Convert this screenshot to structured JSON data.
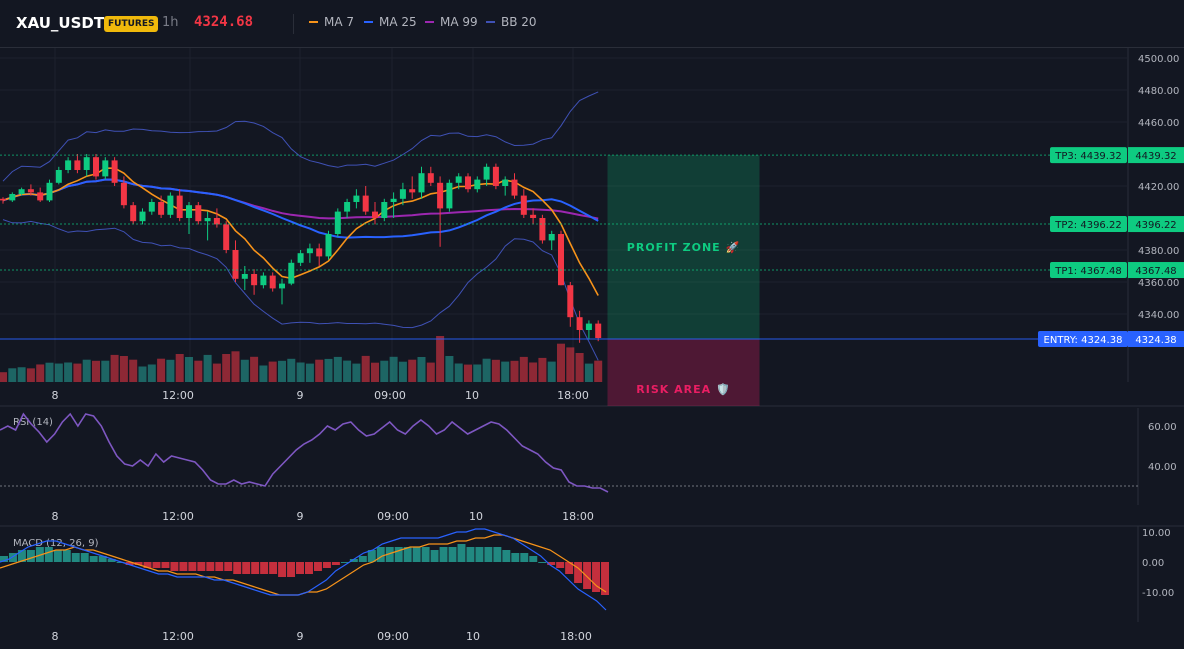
{
  "header": {
    "symbol": "XAU_USDT",
    "badge": "FUTURES",
    "timeframe": "1h",
    "last_price": "4324.68",
    "indicators": [
      {
        "label": "MA 7",
        "color": "#f7931a"
      },
      {
        "label": "MA 25",
        "color": "#2962ff"
      },
      {
        "label": "MA 99",
        "color": "#9c27b0"
      },
      {
        "label": "BB 20",
        "color": "#3f51b5"
      }
    ]
  },
  "colors": {
    "up": "#26a69a",
    "up_candle": "#0ecb81",
    "down": "#f23645",
    "tp": "#0ecb81",
    "entry": "#2962ff",
    "profit_zone": "#0ecb81",
    "risk_area": "#e91e63"
  },
  "chart_data": [
    {
      "type": "candlestick",
      "symbol": "XAU_USDT",
      "interval": "1h",
      "x_ticks": [
        "8",
        "12:00",
        "9",
        "09:00",
        "10",
        "18:00"
      ],
      "y_ticks": [
        "4500.00",
        "4480.00",
        "4460.00",
        "4420.00",
        "4380.00",
        "4360.00",
        "4340.00"
      ],
      "ylim": [
        4320,
        4500
      ],
      "candles": [
        [
          4412,
          4413,
          4409,
          4411
        ],
        [
          4411,
          4416,
          4410,
          4415
        ],
        [
          4415,
          4419,
          4414,
          4418
        ],
        [
          4418,
          4421,
          4414,
          4416
        ],
        [
          4416,
          4419,
          4410,
          4411
        ],
        [
          4411,
          4424,
          4410,
          4422
        ],
        [
          4422,
          4432,
          4421,
          4430
        ],
        [
          4430,
          4438,
          4428,
          4436
        ],
        [
          4436,
          4440,
          4428,
          4430
        ],
        [
          4430,
          4440,
          4426,
          4438
        ],
        [
          4438,
          4440,
          4424,
          4426
        ],
        [
          4426,
          4438,
          4424,
          4436
        ],
        [
          4436,
          4438,
          4420,
          4422
        ],
        [
          4422,
          4426,
          4406,
          4408
        ],
        [
          4408,
          4410,
          4396,
          4398
        ],
        [
          4398,
          4406,
          4396,
          4404
        ],
        [
          4404,
          4412,
          4402,
          4410
        ],
        [
          4410,
          4414,
          4400,
          4402
        ],
        [
          4402,
          4416,
          4400,
          4414
        ],
        [
          4414,
          4418,
          4398,
          4400
        ],
        [
          4400,
          4410,
          4390,
          4408
        ],
        [
          4408,
          4410,
          4396,
          4398
        ],
        [
          4398,
          4404,
          4386,
          4400
        ],
        [
          4400,
          4406,
          4394,
          4396
        ],
        [
          4396,
          4398,
          4378,
          4380
        ],
        [
          4380,
          4386,
          4360,
          4362
        ],
        [
          4362,
          4370,
          4355,
          4365
        ],
        [
          4365,
          4368,
          4352,
          4358
        ],
        [
          4358,
          4366,
          4356,
          4364
        ],
        [
          4364,
          4366,
          4354,
          4356
        ],
        [
          4356,
          4362,
          4346,
          4359
        ],
        [
          4359,
          4374,
          4358,
          4372
        ],
        [
          4372,
          4380,
          4370,
          4378
        ],
        [
          4378,
          4384,
          4372,
          4381
        ],
        [
          4381,
          4384,
          4370,
          4376
        ],
        [
          4376,
          4392,
          4374,
          4390
        ],
        [
          4390,
          4406,
          4388,
          4404
        ],
        [
          4404,
          4412,
          4400,
          4410
        ],
        [
          4410,
          4418,
          4406,
          4414
        ],
        [
          4414,
          4420,
          4402,
          4404
        ],
        [
          4404,
          4410,
          4396,
          4400
        ],
        [
          4400,
          4412,
          4398,
          4410
        ],
        [
          4410,
          4416,
          4400,
          4412
        ],
        [
          4412,
          4422,
          4408,
          4418
        ],
        [
          4418,
          4426,
          4412,
          4416
        ],
        [
          4416,
          4432,
          4412,
          4428
        ],
        [
          4428,
          4432,
          4420,
          4422
        ],
        [
          4422,
          4426,
          4382,
          4406
        ],
        [
          4406,
          4424,
          4404,
          4422
        ],
        [
          4422,
          4428,
          4418,
          4426
        ],
        [
          4426,
          4428,
          4416,
          4418
        ],
        [
          4418,
          4426,
          4416,
          4424
        ],
        [
          4424,
          4434,
          4420,
          4432
        ],
        [
          4432,
          4434,
          4418,
          4420
        ],
        [
          4420,
          4426,
          4414,
          4424
        ],
        [
          4424,
          4428,
          4412,
          4414
        ],
        [
          4414,
          4418,
          4400,
          4402
        ],
        [
          4402,
          4406,
          4396,
          4400
        ],
        [
          4400,
          4402,
          4384,
          4386
        ],
        [
          4386,
          4392,
          4380,
          4390
        ],
        [
          4390,
          4392,
          4358,
          4358
        ],
        [
          4358,
          4360,
          4332,
          4338
        ],
        [
          4338,
          4342,
          4322,
          4330
        ],
        [
          4330,
          4336,
          4324,
          4334
        ],
        [
          4334,
          4336,
          4323,
          4325
        ]
      ],
      "volume_bars": 65,
      "levels": [
        {
          "label": "TP3: 4439.32",
          "value": 4439.32,
          "axis_label": "4439.32"
        },
        {
          "label": "TP2: 4396.22",
          "value": 4396.22,
          "axis_label": "4396.22"
        },
        {
          "label": "TP1: 4367.48",
          "value": 4367.48,
          "axis_label": "4367.48"
        },
        {
          "label": "ENTRY: 4324.38",
          "value": 4324.38,
          "axis_label": "4324.38"
        }
      ],
      "zones": {
        "profit": "PROFIT ZONE 🚀",
        "risk": "RISK AREA 🛡️"
      },
      "overlays": [
        "MA 7",
        "MA 25",
        "MA 99",
        "BB 20"
      ]
    },
    {
      "type": "line",
      "title": "RSI (14)",
      "x_ticks": [
        "8",
        "12:00",
        "9",
        "09:00",
        "10",
        "18:00"
      ],
      "y_ticks": [
        "60.00",
        "40.00"
      ],
      "ylim": [
        20,
        70
      ],
      "reference_line": 30,
      "values": [
        58,
        60,
        58,
        66,
        61,
        57,
        52,
        56,
        62,
        66,
        60,
        66,
        65,
        60,
        52,
        45,
        41,
        40,
        43,
        40,
        46,
        42,
        45,
        44,
        43,
        42,
        38,
        33,
        31,
        31,
        33,
        31,
        32,
        31,
        30,
        36,
        40,
        44,
        48,
        51,
        53,
        56,
        60,
        58,
        61,
        62,
        58,
        55,
        56,
        59,
        62,
        58,
        56,
        60,
        63,
        60,
        56,
        58,
        62,
        59,
        56,
        58,
        60,
        62,
        61,
        58,
        54,
        50,
        48,
        46,
        42,
        39,
        38,
        32,
        30,
        30,
        29,
        29,
        27
      ]
    },
    {
      "type": "bar+line",
      "title": "MACD (12, 26, 9)",
      "x_ticks": [
        "8",
        "12:00",
        "9",
        "09:00",
        "10",
        "18:00"
      ],
      "y_ticks": [
        "10.00",
        "0.00",
        "-10.00"
      ],
      "ylim": [
        -16,
        12
      ],
      "histogram": [
        2,
        3,
        4,
        4,
        5,
        5,
        4,
        4,
        3,
        3,
        2,
        2,
        1,
        0,
        -1,
        -1,
        -2,
        -2,
        -2,
        -3,
        -3,
        -3,
        -3,
        -3,
        -3,
        -3,
        -4,
        -4,
        -4,
        -4,
        -4,
        -5,
        -5,
        -4,
        -4,
        -3,
        -2,
        -1,
        0,
        1,
        2,
        4,
        5,
        5,
        5,
        5,
        5,
        5,
        4,
        5,
        5,
        6,
        5,
        5,
        5,
        5,
        4,
        3,
        3,
        2,
        0,
        -1,
        -2,
        -4,
        -7,
        -9,
        -10,
        -11
      ],
      "macd_line": [
        0,
        1,
        3,
        5,
        6,
        7,
        7,
        6,
        5,
        4,
        3,
        2,
        1,
        0,
        -1,
        -2,
        -3,
        -4,
        -4,
        -5,
        -5,
        -5,
        -5,
        -6,
        -6,
        -7,
        -8,
        -9,
        -10,
        -11,
        -11,
        -11,
        -11,
        -10,
        -8,
        -6,
        -3,
        -1,
        1,
        3,
        4,
        6,
        7,
        8,
        8,
        8,
        8,
        8,
        9,
        10,
        10,
        11,
        11,
        10,
        9,
        8,
        6,
        4,
        2,
        -1,
        -3,
        -6,
        -9,
        -11,
        -13,
        -16
      ],
      "signal_line": [
        -2,
        -1,
        0,
        1,
        2,
        3,
        4,
        4,
        5,
        4,
        4,
        3,
        2,
        1,
        0,
        -1,
        -2,
        -3,
        -3,
        -4,
        -4,
        -4,
        -5,
        -5,
        -6,
        -6,
        -7,
        -8,
        -9,
        -10,
        -11,
        -11,
        -11,
        -10,
        -10,
        -9,
        -7,
        -5,
        -3,
        -1,
        0,
        2,
        3,
        4,
        5,
        5,
        6,
        6,
        6,
        7,
        7,
        8,
        8,
        9,
        9,
        8,
        7,
        6,
        5,
        4,
        2,
        0,
        -2,
        -5,
        -8,
        -10
      ]
    }
  ]
}
